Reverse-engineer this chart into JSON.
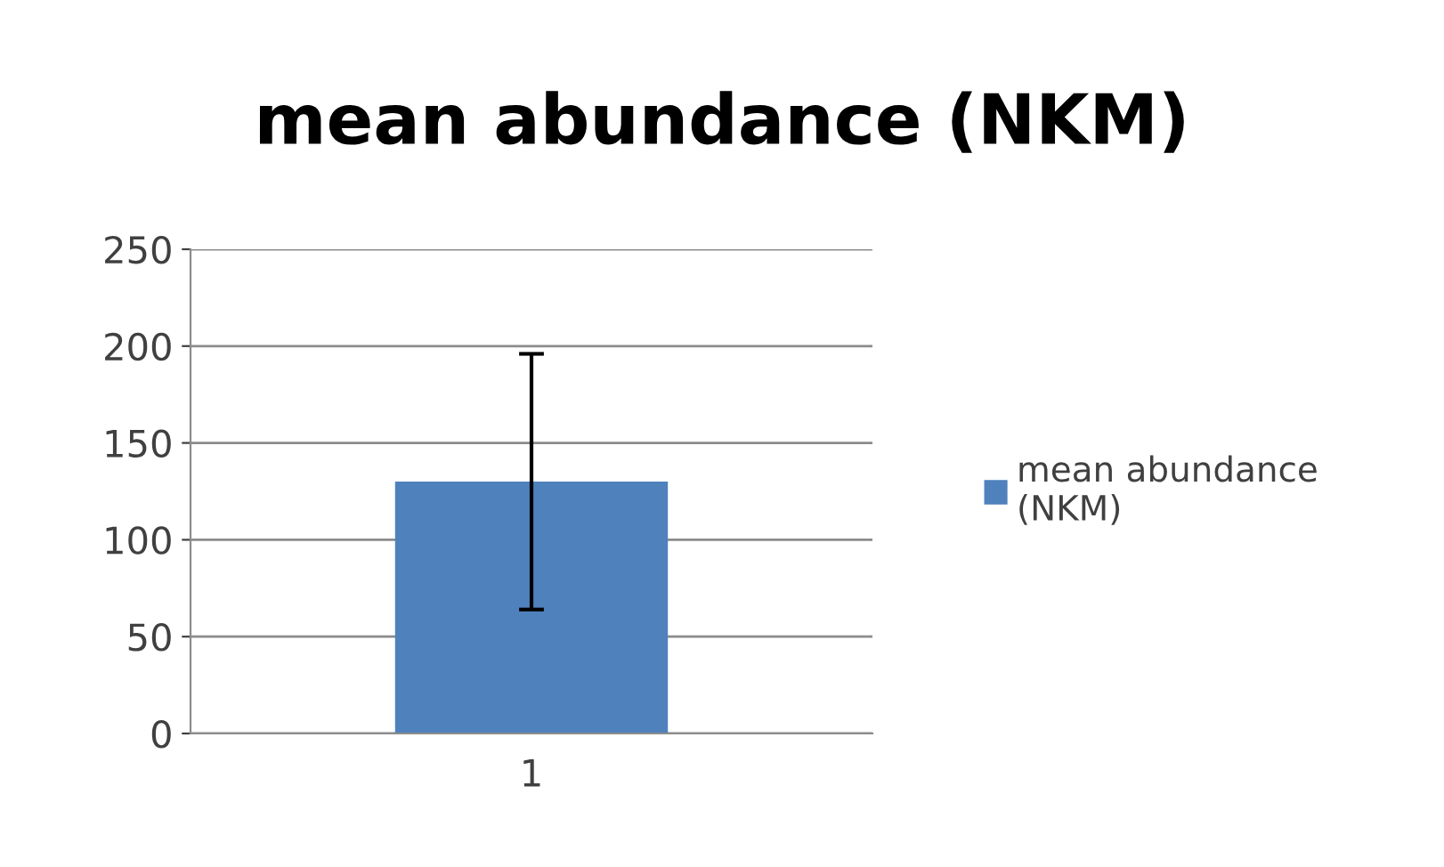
{
  "chart_data": {
    "type": "bar",
    "title": "mean abundance (NKM)",
    "categories": [
      "1"
    ],
    "series": [
      {
        "name": "mean abundance (NKM)",
        "color": "#4f81bd",
        "values": [
          130
        ],
        "errors": [
          66
        ]
      }
    ],
    "ylim": [
      0,
      250
    ],
    "yticks": [
      0,
      50,
      100,
      150,
      200,
      250
    ],
    "grid": "y",
    "legend": "right"
  }
}
